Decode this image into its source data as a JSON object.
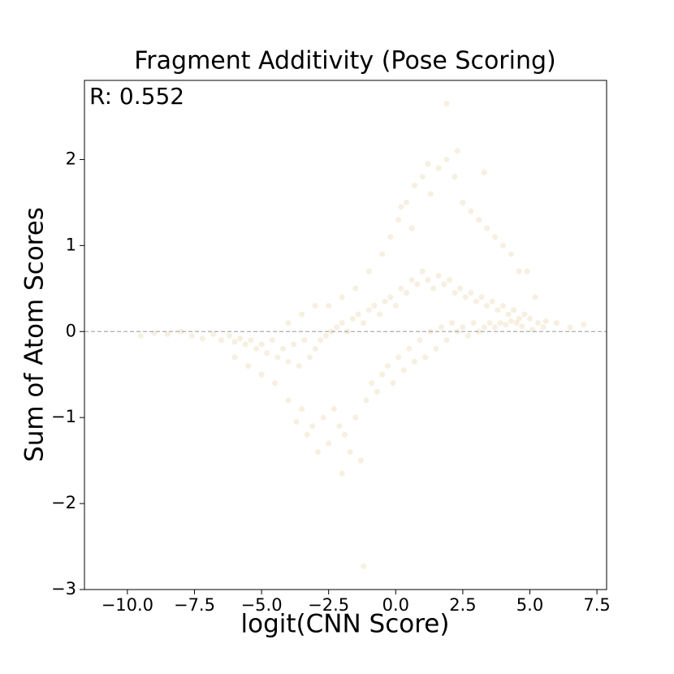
{
  "chart_data": {
    "type": "scatter",
    "title": "Fragment Additivity (Pose Scoring)",
    "xlabel": "logit(CNN Score)",
    "ylabel": "Sum of Atom Scores",
    "annotation": "R: 0.552",
    "color": "#d9b062",
    "alpha": 0.2,
    "reference_line": 0,
    "xlim": [
      -11.6,
      7.86
    ],
    "ylim": [
      -3,
      2.92
    ],
    "xticks": [
      {
        "value": -10,
        "label": "−10.0"
      },
      {
        "value": -7.5,
        "label": "−7.5"
      },
      {
        "value": -5,
        "label": "−5.0"
      },
      {
        "value": -2.5,
        "label": "−2.5"
      },
      {
        "value": 0,
        "label": "0.0"
      },
      2.5,
      {
        "value": 5,
        "label": "5.0"
      },
      7.5
    ],
    "yticks": [
      {
        "value": -3,
        "label": "−3"
      },
      {
        "value": -2,
        "label": "−2"
      },
      {
        "value": -1,
        "label": "−1"
      },
      0,
      1,
      2
    ],
    "x": [
      -9.5,
      -9.0,
      -8.5,
      -8.0,
      -7.6,
      -7.2,
      -6.8,
      -6.5,
      -6.2,
      -6.0,
      -5.8,
      -5.6,
      -5.4,
      -5.2,
      -5.0,
      -4.8,
      -4.6,
      -4.4,
      -4.2,
      -4.0,
      -3.8,
      -3.6,
      -3.4,
      -3.2,
      -3.0,
      -2.8,
      -2.6,
      -2.4,
      -2.2,
      -2.0,
      -1.8,
      -1.6,
      -1.4,
      -1.2,
      -1.0,
      -0.8,
      -0.6,
      -0.4,
      -0.2,
      0.0,
      0.2,
      0.4,
      0.6,
      0.8,
      1.0,
      1.2,
      1.4,
      1.6,
      1.8,
      2.0,
      2.2,
      2.4,
      2.6,
      2.8,
      3.0,
      3.2,
      3.4,
      3.6,
      3.8,
      4.0,
      4.2,
      4.4,
      4.6,
      4.8,
      5.0,
      5.3,
      5.6,
      6.0,
      6.5,
      7.0,
      -6.0,
      -5.5,
      -5.0,
      -4.5,
      -4.0,
      -3.7,
      -3.5,
      -3.3,
      -3.1,
      -2.9,
      -2.7,
      -2.5,
      -2.3,
      -2.1,
      -1.9,
      -1.7,
      -1.5,
      -1.3,
      -1.1,
      -0.9,
      -0.7,
      -0.5,
      -0.3,
      -0.1,
      0.1,
      0.3,
      0.5,
      0.7,
      0.9,
      1.1,
      1.3,
      1.5,
      1.7,
      1.9,
      2.1,
      2.3,
      2.5,
      2.7,
      2.9,
      3.1,
      3.3,
      3.5,
      3.7,
      3.9,
      4.1,
      4.3,
      4.5,
      4.7,
      5.1,
      5.5,
      -4.0,
      -3.5,
      -3.0,
      -2.5,
      -2.0,
      -1.5,
      -1.0,
      -0.5,
      -0.2,
      0.1,
      0.4,
      0.7,
      1.0,
      1.3,
      1.6,
      1.9,
      2.2,
      2.5,
      2.8,
      3.1,
      3.4,
      3.7,
      4.0,
      4.3,
      4.6,
      4.9,
      5.2,
      -1.2,
      -2.0,
      1.9,
      0.2,
      0.6,
      1.2,
      2.3,
      3.3
    ],
    "values": [
      -0.05,
      -0.02,
      -0.03,
      0.0,
      -0.05,
      -0.08,
      -0.03,
      -0.1,
      -0.05,
      -0.12,
      -0.08,
      -0.15,
      -0.1,
      -0.2,
      -0.15,
      -0.25,
      -0.1,
      -0.3,
      -0.2,
      -0.35,
      -0.15,
      -0.4,
      -0.1,
      -0.3,
      -0.2,
      -0.1,
      -0.05,
      0.0,
      0.05,
      0.1,
      0.0,
      0.15,
      0.2,
      0.1,
      0.25,
      0.3,
      0.2,
      0.35,
      0.4,
      0.3,
      0.5,
      0.45,
      0.6,
      0.55,
      0.7,
      0.6,
      0.5,
      0.65,
      0.55,
      0.6,
      0.45,
      0.5,
      0.4,
      0.45,
      0.35,
      0.4,
      0.3,
      0.35,
      0.25,
      0.3,
      0.2,
      0.25,
      0.15,
      0.2,
      0.15,
      0.1,
      0.12,
      0.1,
      0.05,
      0.08,
      -0.3,
      -0.4,
      -0.5,
      -0.6,
      -0.8,
      -1.05,
      -0.9,
      -1.2,
      -1.1,
      -1.4,
      -1.0,
      -1.3,
      -0.9,
      -1.1,
      -1.2,
      -1.4,
      -1.0,
      -1.5,
      -0.8,
      -0.6,
      -0.7,
      -0.5,
      -0.4,
      -0.6,
      -0.3,
      -0.45,
      -0.2,
      -0.35,
      -0.1,
      -0.3,
      0.0,
      -0.2,
      0.05,
      -0.1,
      0.1,
      0.0,
      0.05,
      -0.05,
      0.1,
      0.0,
      0.05,
      0.1,
      0.05,
      0.1,
      0.08,
      0.12,
      0.1,
      0.06,
      0.02,
      0.05,
      0.1,
      0.2,
      0.3,
      0.3,
      0.4,
      0.5,
      0.7,
      0.9,
      1.1,
      1.3,
      1.5,
      1.7,
      1.8,
      1.6,
      1.9,
      2.0,
      1.8,
      1.5,
      1.4,
      1.3,
      1.2,
      1.1,
      1.0,
      0.9,
      0.7,
      0.7,
      0.4,
      -2.73,
      -1.65,
      2.65,
      1.45,
      1.2,
      1.95,
      2.1,
      1.85
    ]
  }
}
